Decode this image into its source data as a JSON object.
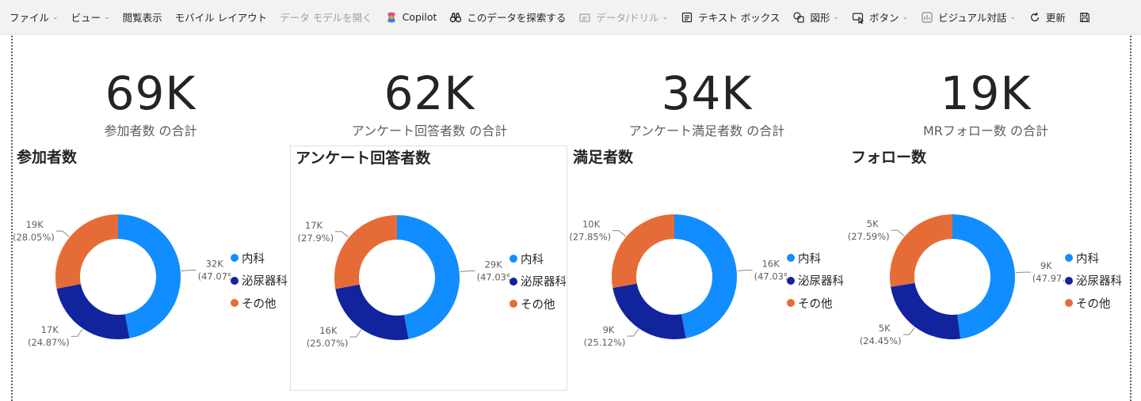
{
  "toolbar": {
    "file": "ファイル",
    "view": "ビュー",
    "reading_view": "閲覧表示",
    "mobile_layout": "モバイル レイアウト",
    "open_data_model": "データ モデルを開く",
    "copilot": "Copilot",
    "explore_data": "このデータを探索する",
    "data_drill": "データ/ドリル",
    "text_box": "テキスト ボックス",
    "shapes": "図形",
    "buttons": "ボタン",
    "visual_interactions": "ビジュアル対話",
    "refresh": "更新"
  },
  "kpis": [
    {
      "value": "69K",
      "label": "参加者数 の合計"
    },
    {
      "value": "62K",
      "label": "アンケート回答者数 の合計"
    },
    {
      "value": "34K",
      "label": "アンケート満足者数 の合計"
    },
    {
      "value": "19K",
      "label": "MRフォロー数 の合計"
    }
  ],
  "colors": {
    "内科": "#118dff",
    "泌尿器科": "#12239e",
    "その他": "#e66c37"
  },
  "legend": [
    "内科",
    "泌尿器科",
    "その他"
  ],
  "chart_data": [
    {
      "type": "pie",
      "title": "参加者数",
      "categories": [
        "内科",
        "泌尿器科",
        "その他"
      ],
      "values": [
        47.07,
        24.87,
        28.05
      ],
      "labels": [
        [
          "32K",
          "(47.07%)"
        ],
        [
          "17K",
          "(24.87%)"
        ],
        [
          "19K",
          "(28.05%)"
        ]
      ]
    },
    {
      "type": "pie",
      "title": "アンケート回答者数",
      "categories": [
        "内科",
        "泌尿器科",
        "その他"
      ],
      "values": [
        47.03,
        25.07,
        27.9
      ],
      "labels": [
        [
          "29K",
          "(47.03%)"
        ],
        [
          "16K",
          "(25.07%)"
        ],
        [
          "17K",
          "(27.9%)"
        ]
      ]
    },
    {
      "type": "pie",
      "title": "満足者数",
      "categories": [
        "内科",
        "泌尿器科",
        "その他"
      ],
      "values": [
        47.03,
        25.12,
        27.85
      ],
      "labels": [
        [
          "16K",
          "(47.03%)"
        ],
        [
          "9K",
          "(25.12%)"
        ],
        [
          "10K",
          "(27.85%)"
        ]
      ]
    },
    {
      "type": "pie",
      "title": "フォロー数",
      "categories": [
        "内科",
        "泌尿器科",
        "その他"
      ],
      "values": [
        47.97,
        24.45,
        27.59
      ],
      "labels": [
        [
          "9K",
          "(47.97...)"
        ],
        [
          "5K",
          "(24.45%)"
        ],
        [
          "5K",
          "(27.59%)"
        ]
      ]
    }
  ]
}
